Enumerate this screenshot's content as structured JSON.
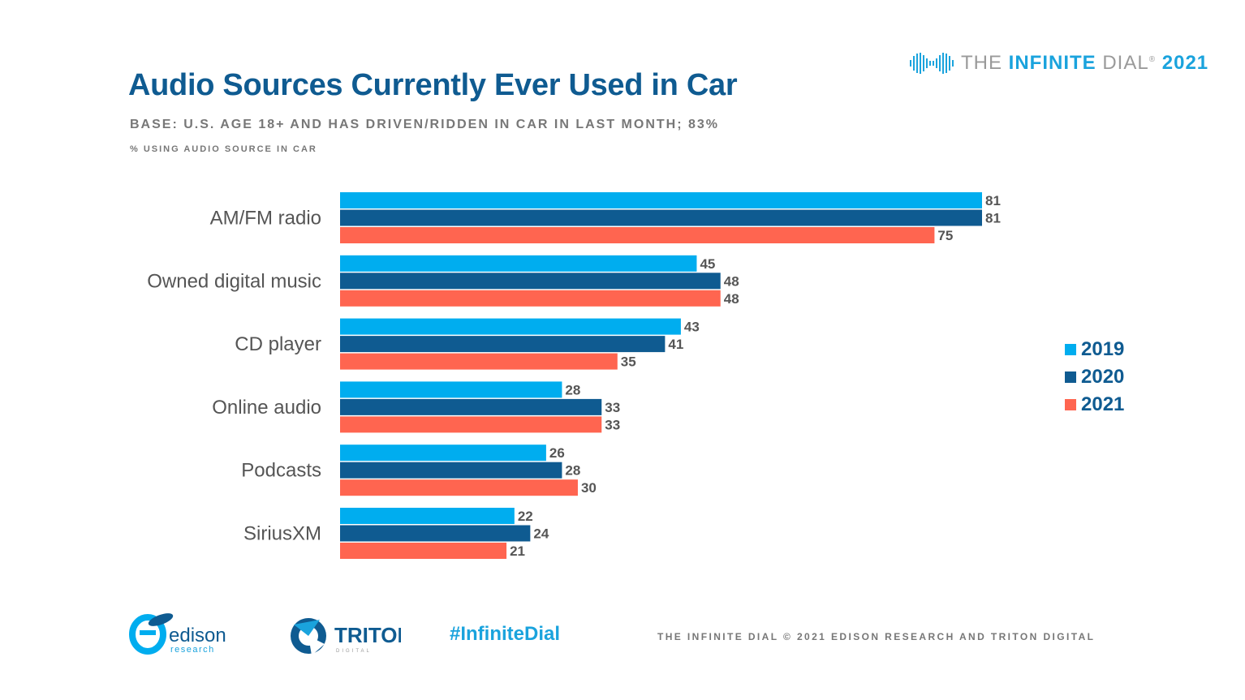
{
  "header": {
    "title": "Audio Sources Currently Ever Used in Car",
    "subtitle": "BASE: U.S. AGE 18+ AND HAS DRIVEN/RIDDEN IN CAR IN LAST MONTH; 83%",
    "unit_note": "% USING AUDIO SOURCE IN CAR"
  },
  "brand": {
    "part1": "THE ",
    "part2": "INFINITE",
    "part3": " DIAL",
    "mark": "®",
    "year": "2021",
    "icon": "infinite-dial-logo-icon"
  },
  "chart_data": {
    "type": "bar",
    "orientation": "horizontal",
    "categories": [
      "AM/FM radio",
      "Owned digital music",
      "CD player",
      "Online audio",
      "Podcasts",
      "SiriusXM"
    ],
    "series": [
      {
        "name": "2019",
        "color": "#00adef",
        "values": [
          81,
          45,
          43,
          28,
          26,
          22
        ]
      },
      {
        "name": "2020",
        "color": "#0f5b91",
        "values": [
          81,
          48,
          41,
          33,
          28,
          24
        ]
      },
      {
        "name": "2021",
        "color": "#ff6550",
        "values": [
          75,
          48,
          35,
          33,
          30,
          21
        ]
      }
    ],
    "xlim": [
      0,
      100
    ],
    "data_labels": true,
    "grid": false,
    "legend": "right"
  },
  "footer": {
    "edison_main": "edison",
    "edison_sub": "research",
    "triton": "TRITON",
    "triton_sub": "DIGITAL",
    "hashtag": "#InfiniteDial",
    "note": "THE INFINITE DIAL   © 2021 EDISON RESEARCH AND TRITON DIGITAL"
  },
  "colors": {
    "title": "#0f5b91",
    "accent": "#1aa3dd",
    "muted": "#777777"
  }
}
